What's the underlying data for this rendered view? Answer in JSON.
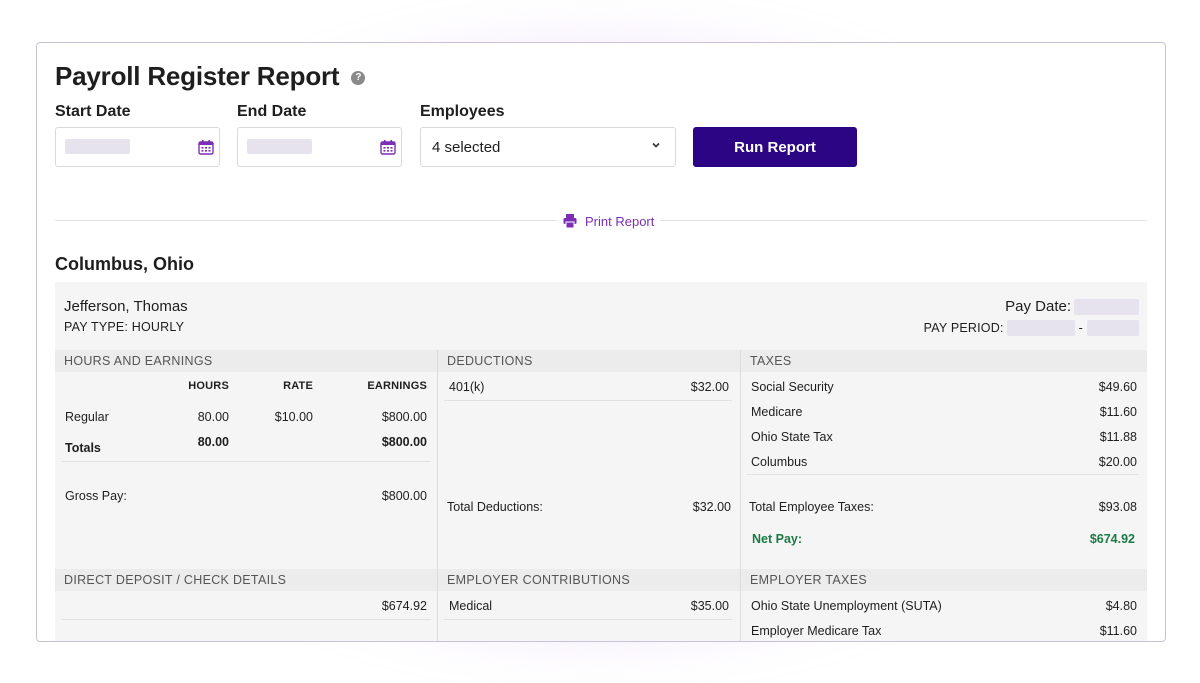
{
  "header": {
    "title": "Payroll Register Report",
    "help_icon": "question-circle-icon"
  },
  "filters": {
    "start_date_label": "Start Date",
    "end_date_label": "End Date",
    "employees_label": "Employees",
    "employees_value": "4 selected",
    "run_button": "Run Report"
  },
  "print_label": "Print Report",
  "location": "Columbus, Ohio",
  "employee": {
    "name": "Jefferson, Thomas",
    "pay_type": "PAY TYPE: HOURLY",
    "pay_date_label": "Pay Date:",
    "pay_period_label": "PAY PERIOD:",
    "pay_period_sep": "-"
  },
  "earnings": {
    "heading": "HOURS AND EARNINGS",
    "col_hours": "HOURS",
    "col_rate": "RATE",
    "col_earnings": "EARNINGS",
    "rows": [
      {
        "label": "Regular",
        "hours": "80.00",
        "rate": "$10.00",
        "earnings": "$800.00"
      }
    ],
    "totals_label": "Totals",
    "totals_hours": "80.00",
    "totals_earnings": "$800.00",
    "gross_label": "Gross Pay:",
    "gross_value": "$800.00"
  },
  "deductions": {
    "heading": "DEDUCTIONS",
    "rows": [
      {
        "label": "401(k)",
        "value": "$32.00"
      }
    ],
    "total_label": "Total Deductions:",
    "total_value": "$32.00"
  },
  "taxes": {
    "heading": "TAXES",
    "rows": [
      {
        "label": "Social Security",
        "value": "$49.60"
      },
      {
        "label": "Medicare",
        "value": "$11.60"
      },
      {
        "label": "Ohio State Tax",
        "value": "$11.88"
      },
      {
        "label": "Columbus",
        "value": "$20.00"
      }
    ],
    "total_label": "Total Employee Taxes:",
    "total_value": "$93.08",
    "net_label": "Net Pay:",
    "net_value": "$674.92"
  },
  "direct_deposit": {
    "heading": "DIRECT DEPOSIT / CHECK DETAILS",
    "value": "$674.92"
  },
  "employer_contributions": {
    "heading": "EMPLOYER CONTRIBUTIONS",
    "rows": [
      {
        "label": "Medical",
        "value": "$35.00"
      }
    ]
  },
  "employer_taxes": {
    "heading": "EMPLOYER TAXES",
    "rows": [
      {
        "label": "Ohio State Unemployment (SUTA)",
        "value": "$4.80"
      },
      {
        "label": "Employer Medicare Tax",
        "value": "$11.60"
      }
    ]
  },
  "colors": {
    "primary_button": "#2b0584",
    "accent_purple": "#7b2fb5",
    "net_pay_green": "#1b7a46"
  }
}
